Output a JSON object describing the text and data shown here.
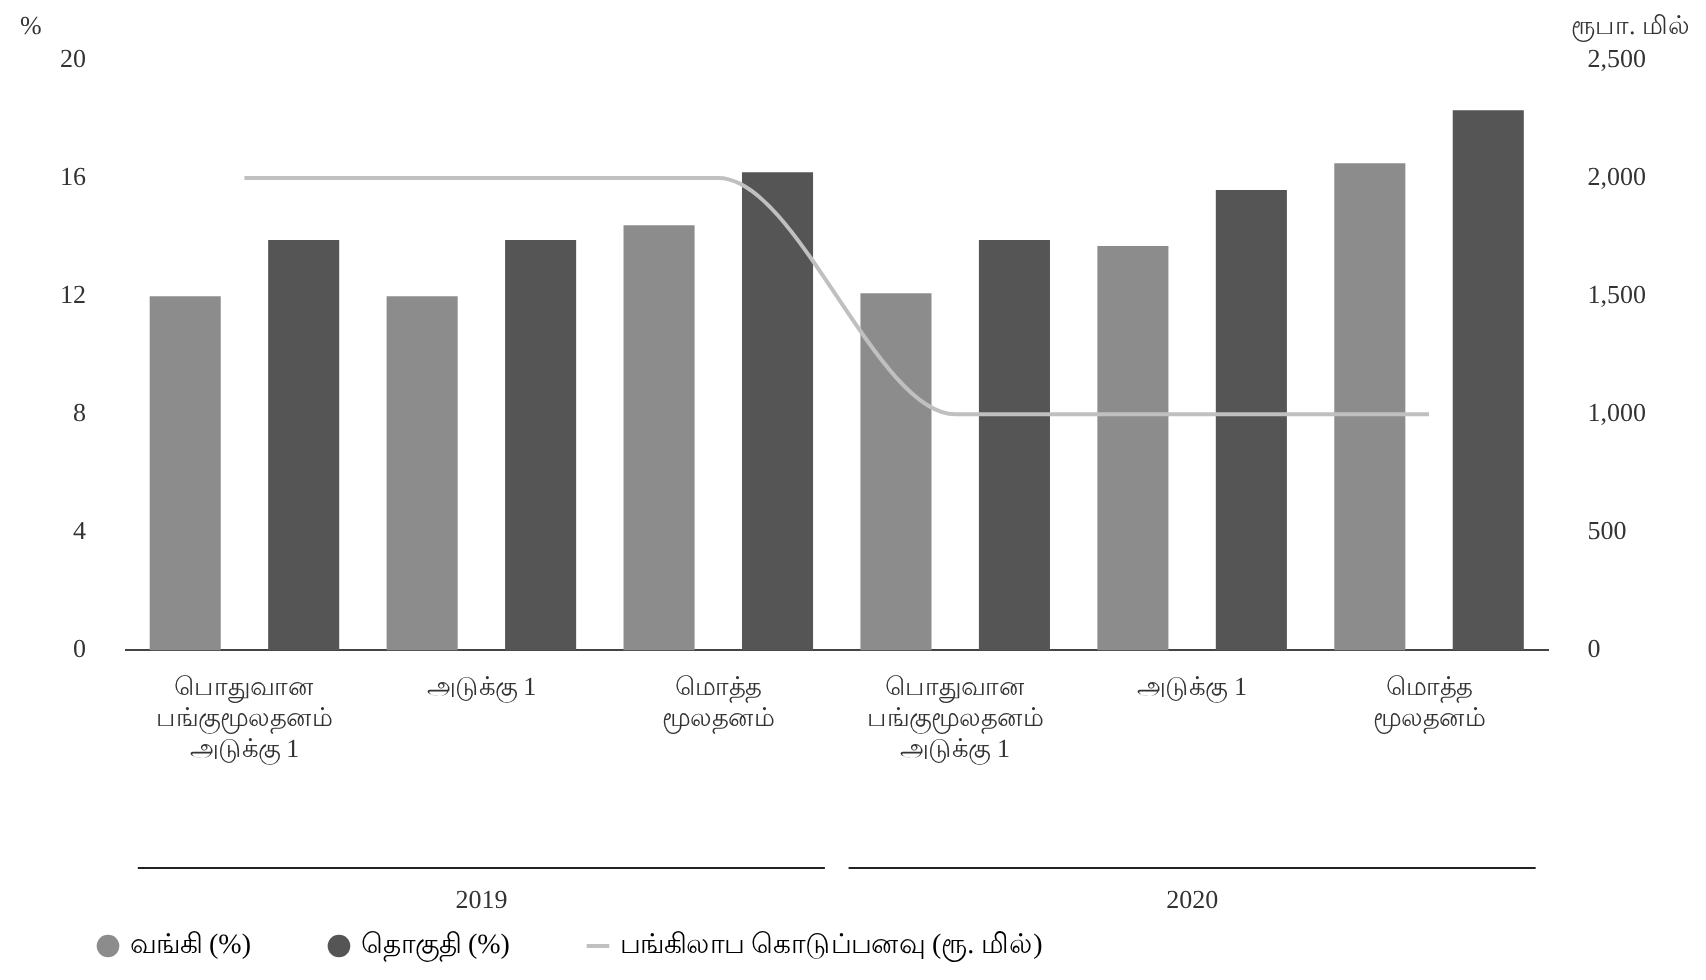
{
  "chart_data": {
    "type": "bar",
    "ylabel": "%",
    "y2label": "ரூபா. மில்",
    "categories": [
      "பொதுவான பங்குமூலதனம் அடுக்கு 1",
      "அடுக்கு 1",
      "மொத்த மூலதனம்",
      "பொதுவான பங்குமூலதனம் அடுக்கு 1",
      "அடுக்கு 1",
      "மொத்த மூலதனம்"
    ],
    "series": [
      {
        "name": "வங்கி (%)",
        "color": "#8c8c8c",
        "values": [
          12,
          12,
          14.4,
          12.1,
          13.7,
          16.5
        ]
      },
      {
        "name": "தொகுதி (%)",
        "color": "#555555",
        "values": [
          13.9,
          13.9,
          16.2,
          13.9,
          15.6,
          18.3
        ]
      },
      {
        "name": "பங்கிலாப கொடுப்பனவு (ரூ. மில்)",
        "type": "line",
        "axis": "y2",
        "color": "#c0c0c0",
        "values": [
          2000,
          2000,
          2000,
          1000,
          1000,
          1000
        ]
      }
    ],
    "ylim": [
      0,
      20
    ],
    "yticks": [
      0,
      4,
      8,
      12,
      16,
      20
    ],
    "y2lim": [
      0,
      2500
    ],
    "y2ticks": [
      {
        "value": 0,
        "label": "0"
      },
      {
        "value": 500,
        "label": "500"
      },
      {
        "value": 1000,
        "label": "1,000"
      },
      {
        "value": 1500,
        "label": "1,500"
      },
      {
        "value": 2000,
        "label": "2,000"
      },
      {
        "value": 2500,
        "label": "2,500"
      }
    ],
    "annotations": [
      "2019",
      "2020"
    ],
    "grid": false,
    "legend": "bottom left"
  }
}
